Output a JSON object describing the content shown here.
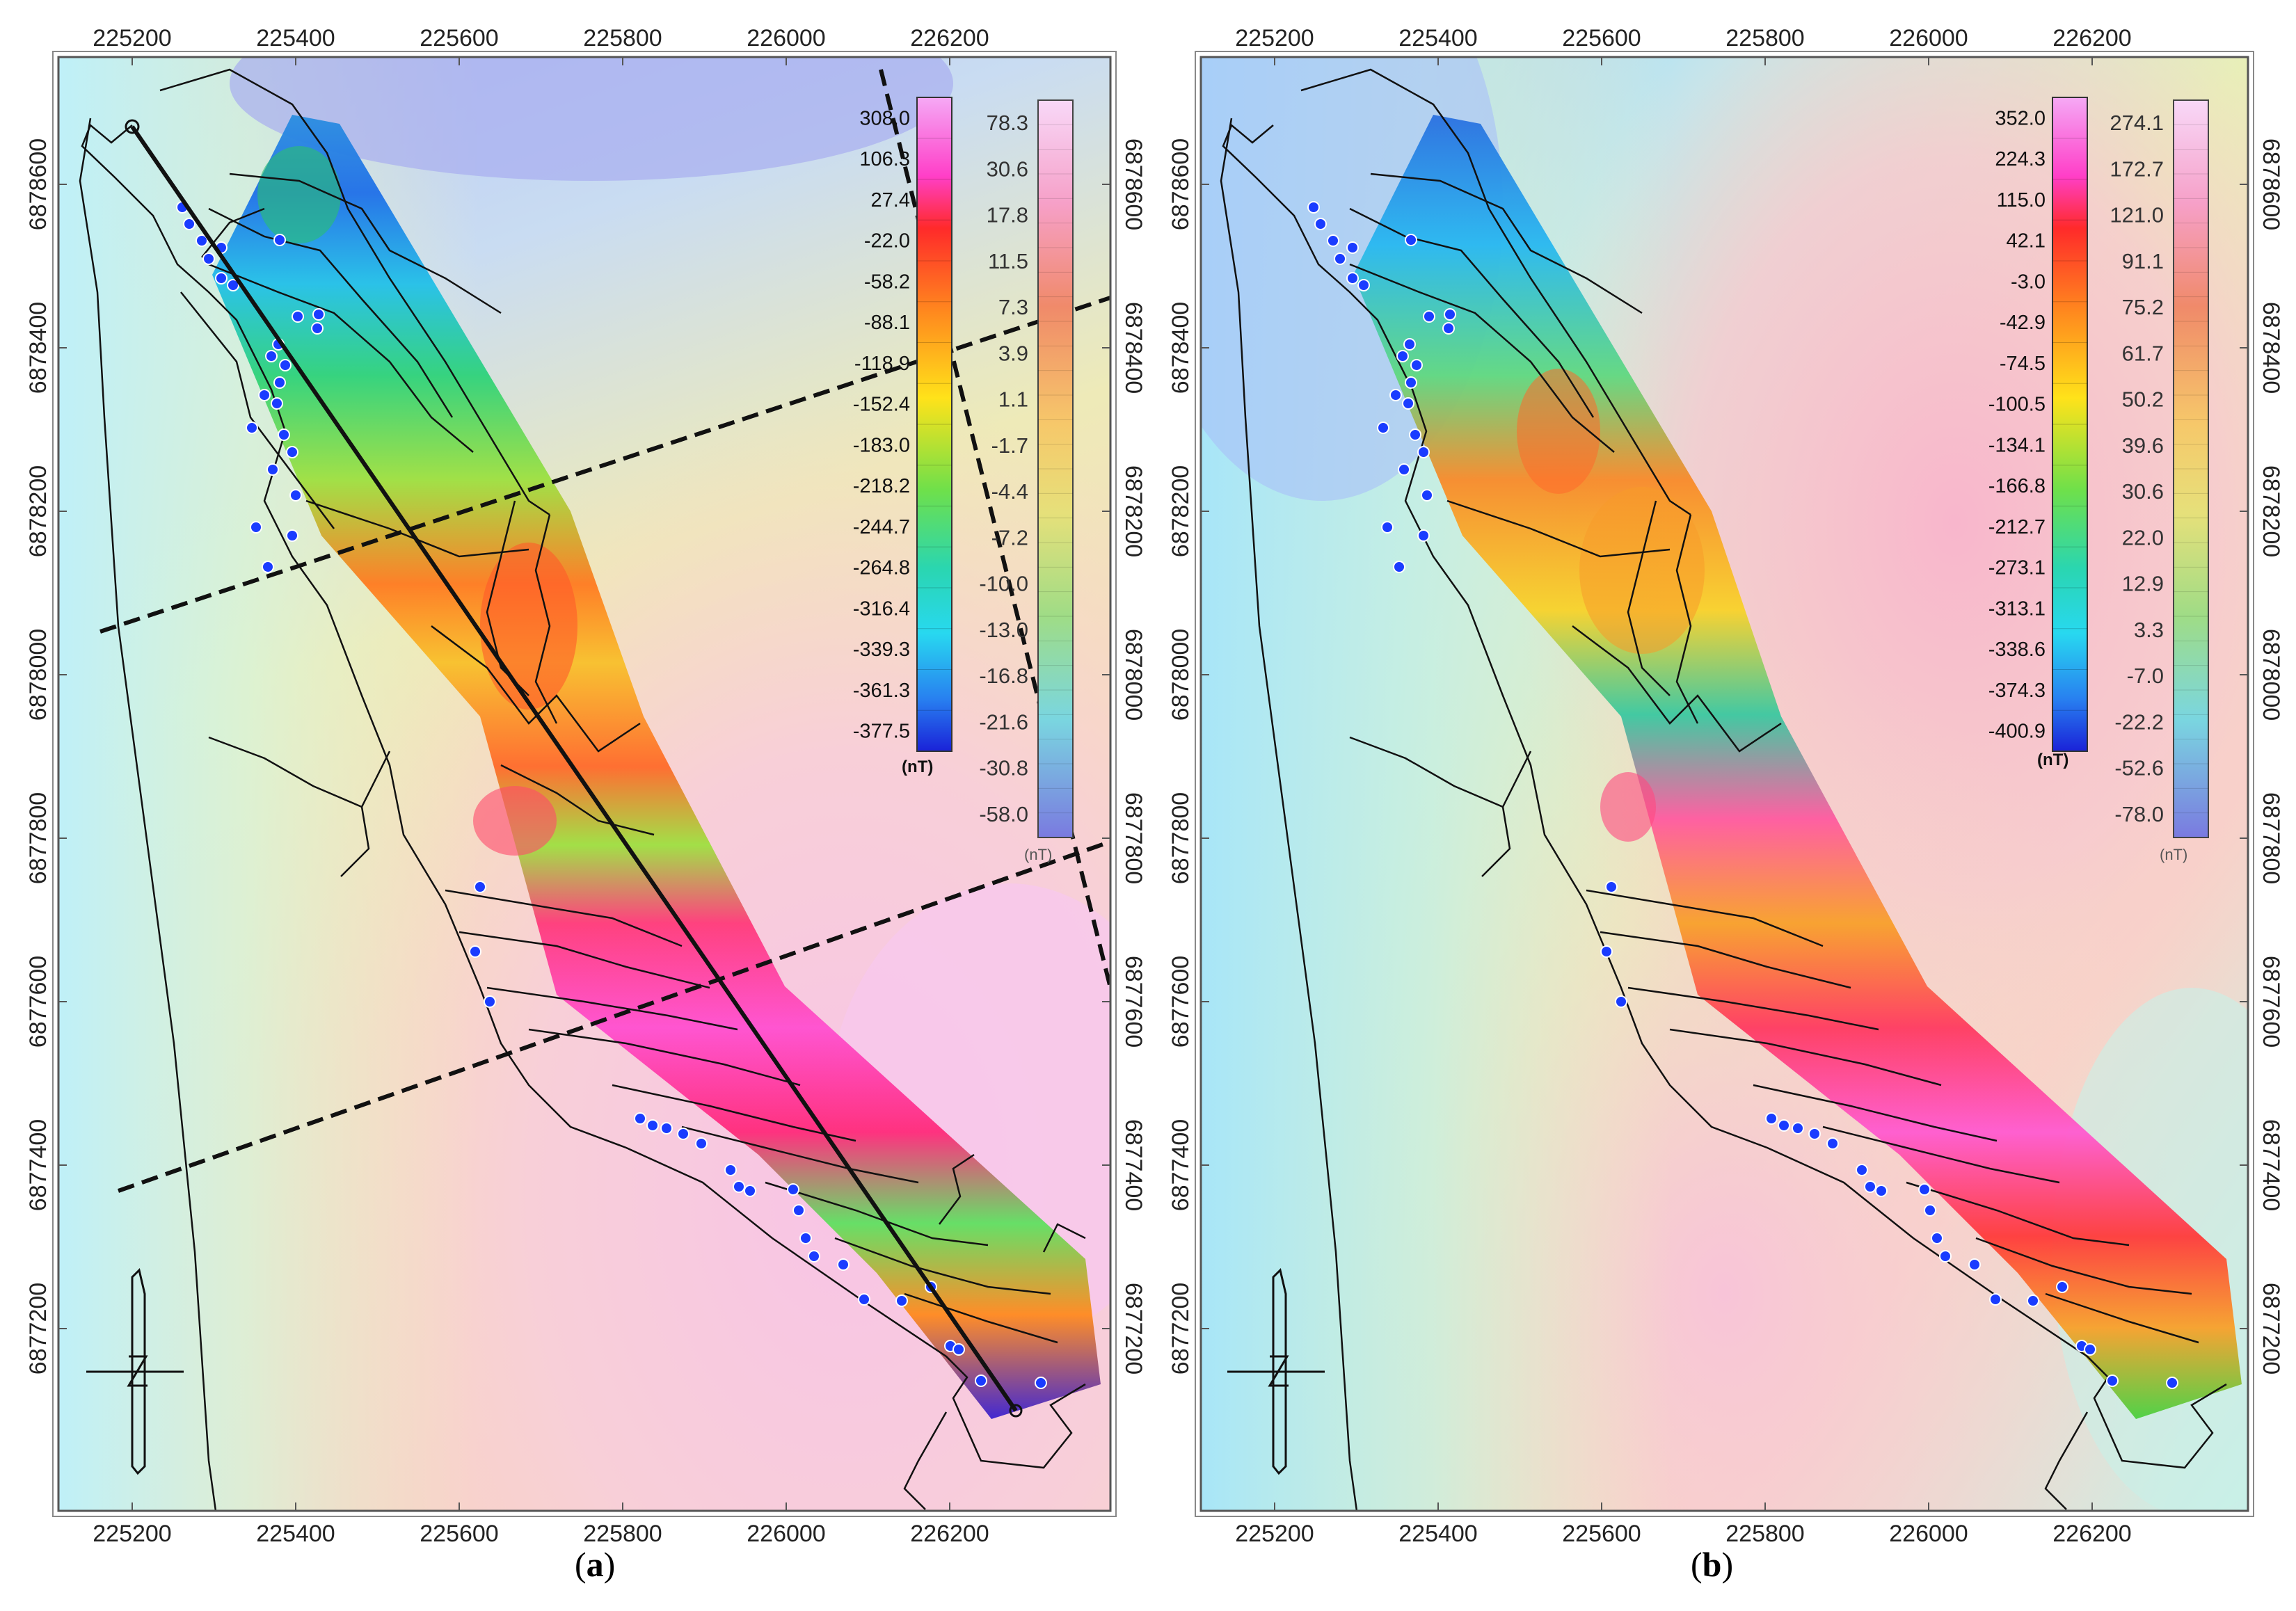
{
  "panels": [
    {
      "id": "a",
      "caption_open": "(",
      "caption_letter": "a",
      "caption_close": ")",
      "x_ticks": [
        "225200",
        "225400",
        "225600",
        "225800",
        "226000",
        "226200"
      ],
      "y_ticks": [
        "6878600",
        "6878400",
        "6878200",
        "6878000",
        "6877800",
        "6877600",
        "6877400",
        "6877200"
      ],
      "colorbar_left": {
        "labels": [
          "308.0",
          "106.3",
          "27.4",
          "-22.0",
          "-58.2",
          "-88.1",
          "-118.9",
          "-152.4",
          "-183.0",
          "-218.2",
          "-244.7",
          "-264.8",
          "-316.4",
          "-339.3",
          "-361.3",
          "-377.5"
        ],
        "unit": "(nT)"
      },
      "colorbar_right": {
        "labels": [
          "78.3",
          "30.6",
          "17.8",
          "11.5",
          "7.3",
          "3.9",
          "1.1",
          "-1.7",
          "-4.4",
          "-7.2",
          "-10.0",
          "-13.0",
          "-16.8",
          "-21.6",
          "-30.8",
          "-58.0"
        ],
        "unit": "(nT)"
      },
      "has_profile_line": true,
      "has_dashed_lines": true
    },
    {
      "id": "b",
      "caption_open": "(",
      "caption_letter": "b",
      "caption_close": ")",
      "x_ticks": [
        "225200",
        "225400",
        "225600",
        "225800",
        "226000",
        "226200"
      ],
      "y_ticks": [
        "6878600",
        "6878400",
        "6878200",
        "6878000",
        "6877800",
        "6877600",
        "6877400",
        "6877200"
      ],
      "colorbar_left": {
        "labels": [
          "352.0",
          "224.3",
          "115.0",
          "42.1",
          "-3.0",
          "-42.9",
          "-74.5",
          "-100.5",
          "-134.1",
          "-166.8",
          "-212.7",
          "-273.1",
          "-313.1",
          "-338.6",
          "-374.3",
          "-400.9"
        ],
        "unit": "(nT)"
      },
      "colorbar_right": {
        "labels": [
          "274.1",
          "172.7",
          "121.0",
          "91.1",
          "75.2",
          "61.7",
          "50.2",
          "39.6",
          "30.6",
          "22.0",
          "12.9",
          "3.3",
          "-7.0",
          "-22.2",
          "-52.6",
          "-78.0"
        ],
        "unit": "(nT)"
      },
      "has_profile_line": false,
      "has_dashed_lines": false
    }
  ],
  "colors": {
    "frame": "#555555",
    "coastline": "#111111",
    "borehole": "#1a3cff",
    "profile": "#111111"
  }
}
